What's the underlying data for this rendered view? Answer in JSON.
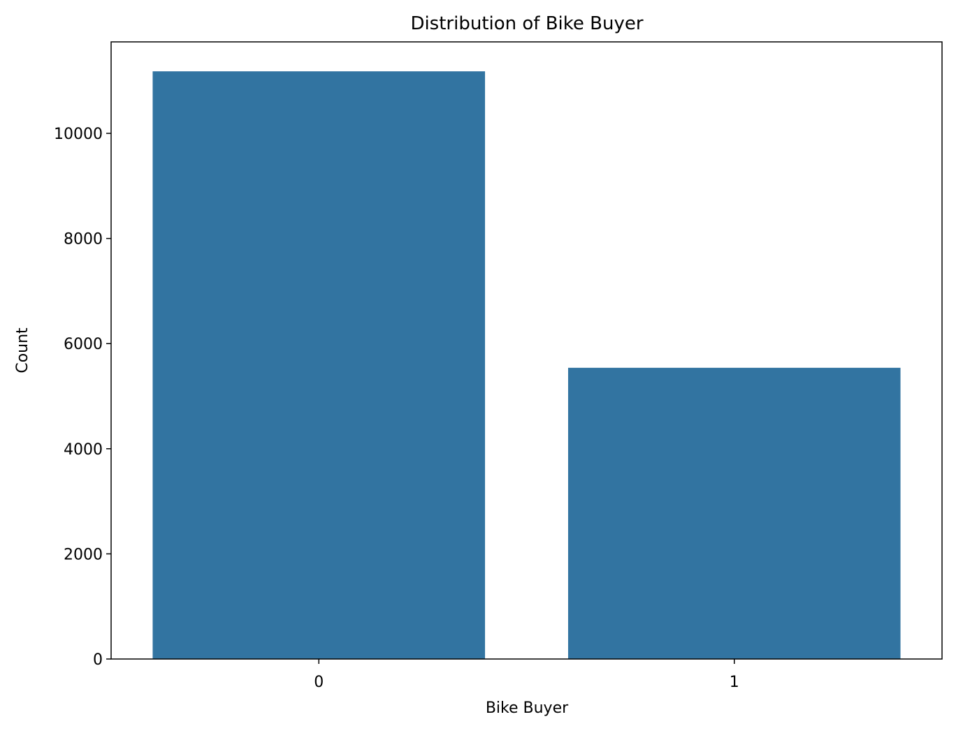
{
  "chart_data": {
    "type": "bar",
    "title": "Distribution of Bike Buyer",
    "xlabel": "Bike Buyer",
    "ylabel": "Count",
    "categories": [
      "0",
      "1"
    ],
    "values": [
      11180,
      5540
    ],
    "ylim": [
      0,
      11740
    ],
    "yticks": [
      0,
      2000,
      4000,
      6000,
      8000,
      10000
    ],
    "bar_color": "#3274a1",
    "grid": false,
    "legend": "none"
  }
}
